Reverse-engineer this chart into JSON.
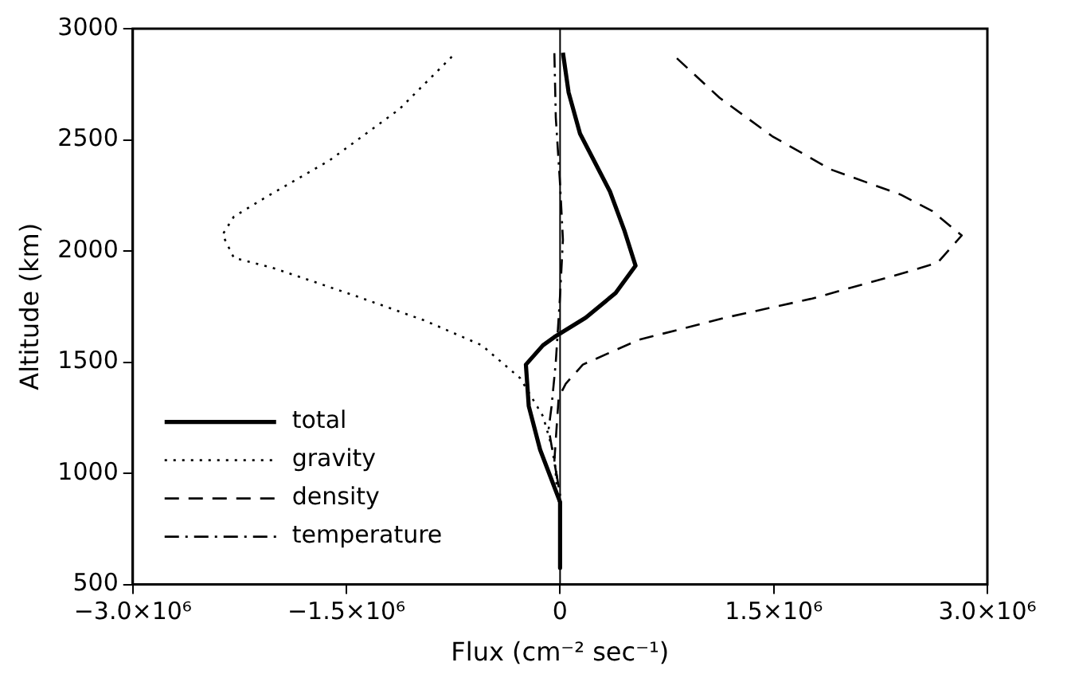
{
  "chart_data": {
    "type": "line",
    "xlabel": "Flux (cm⁻² sec⁻¹)",
    "ylabel": "Altitude (km)",
    "xlim": [
      -3000000,
      3000000
    ],
    "ylim": [
      500,
      3000
    ],
    "xticks": [
      {
        "value": -3000000,
        "label": "−3.0×10⁶"
      },
      {
        "value": -1500000,
        "label": "−1.5×10⁶"
      },
      0,
      {
        "value": 1500000,
        "label": "1.5×10⁶"
      },
      {
        "value": 3000000,
        "label": "3.0×10⁶"
      }
    ],
    "yticks": [
      500,
      1000,
      1500,
      2000,
      2500,
      3000
    ],
    "legend": "bottom left",
    "grid": false,
    "marker": "none",
    "ref_lines": [
      {
        "axis": "x",
        "value": 0,
        "color": "#000000",
        "line_style": "solid"
      }
    ],
    "series": [
      {
        "name": "total",
        "color": "#000000",
        "line_style": "solid",
        "x": [
          20000,
          60000,
          140000,
          350000,
          450000,
          530000,
          390000,
          180000,
          -40000,
          -120000,
          -240000,
          -220000,
          -140000,
          0,
          0
        ],
        "values": [
          2892,
          2713,
          2528,
          2268,
          2095,
          1934,
          1811,
          1700,
          1613,
          1576,
          1489,
          1303,
          1106,
          871,
          575
        ]
      },
      {
        "name": "gravity",
        "color": "#000000",
        "line_style": "dotted",
        "x": [
          -760000,
          -1130000,
          -1620000,
          -2060000,
          -2290000,
          -2370000,
          -2290000,
          -2020000,
          -1440000,
          -950000,
          -550000,
          -280000,
          -120000,
          -40000,
          -20000,
          0
        ],
        "values": [
          2874,
          2637,
          2407,
          2244,
          2155,
          2073,
          1969,
          1925,
          1799,
          1687,
          1576,
          1428,
          1257,
          1079,
          908,
          850
        ]
      },
      {
        "name": "density",
        "color": "#000000",
        "line_style": "dashed",
        "x": [
          820000,
          1120000,
          1490000,
          1900000,
          2390000,
          2610000,
          2820000,
          2650000,
          2390000,
          1770000,
          1160000,
          550000,
          160000,
          40000,
          -10000,
          -40000,
          0
        ],
        "values": [
          2867,
          2689,
          2516,
          2367,
          2254,
          2181,
          2070,
          1947,
          1897,
          1786,
          1700,
          1600,
          1489,
          1403,
          1341,
          1057,
          900
        ]
      },
      {
        "name": "temperature",
        "color": "#000000",
        "line_style": "dashdot",
        "x": [
          -40000,
          -30000,
          0,
          20000,
          0,
          -30000,
          -60000,
          -80000,
          -40000,
          0
        ],
        "values": [
          2890,
          2600,
          2300,
          2050,
          1800,
          1500,
          1300,
          1200,
          1050,
          900
        ]
      }
    ]
  }
}
